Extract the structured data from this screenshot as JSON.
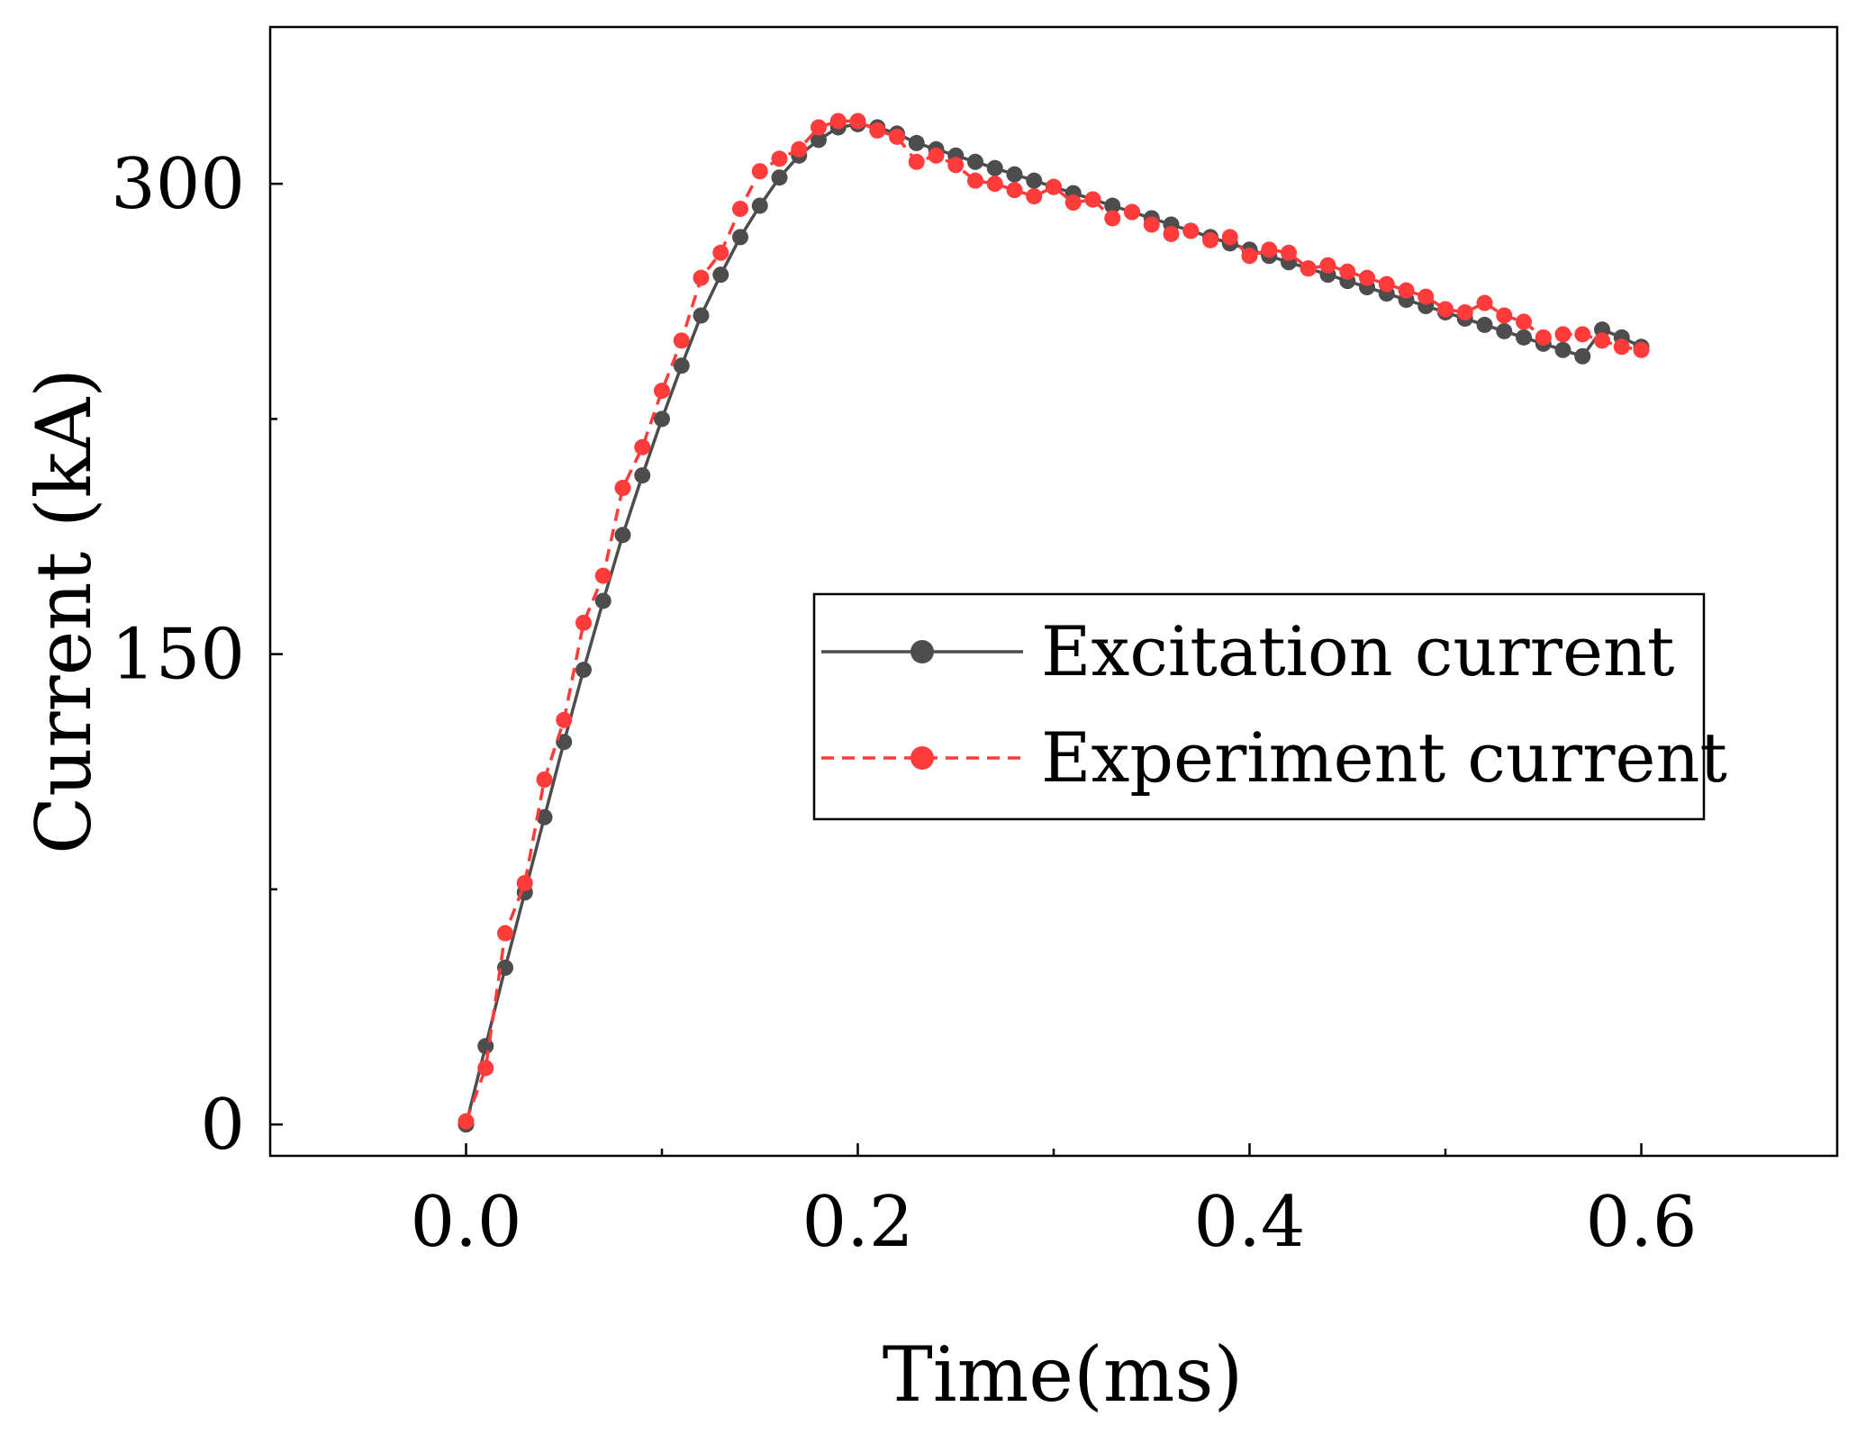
{
  "chart_data": {
    "type": "line",
    "title": "",
    "xlabel": "Time(ms)",
    "ylabel": "Current (kA)",
    "xlim": [
      -0.1,
      0.7
    ],
    "ylim": [
      -10,
      350
    ],
    "xticks": [
      0.0,
      0.2,
      0.4,
      0.6
    ],
    "xtick_labels": [
      "0.0",
      "0.2",
      "0.4",
      "0.6"
    ],
    "xminor": [
      0.1,
      0.3,
      0.5
    ],
    "yticks": [
      0,
      150,
      300
    ],
    "ytick_labels": [
      "0",
      "150",
      "300"
    ],
    "yminor": [
      75,
      225
    ],
    "grid": false,
    "legend_position": "center-right",
    "x": [
      0.0,
      0.01,
      0.02,
      0.03,
      0.04,
      0.05,
      0.06,
      0.07,
      0.08,
      0.09,
      0.1,
      0.11,
      0.12,
      0.13,
      0.14,
      0.15,
      0.16,
      0.17,
      0.18,
      0.19,
      0.2,
      0.21,
      0.22,
      0.23,
      0.24,
      0.25,
      0.26,
      0.27,
      0.28,
      0.29,
      0.3,
      0.31,
      0.32,
      0.33,
      0.34,
      0.35,
      0.36,
      0.37,
      0.38,
      0.39,
      0.4,
      0.41,
      0.42,
      0.43,
      0.44,
      0.45,
      0.46,
      0.47,
      0.48,
      0.49,
      0.5,
      0.51,
      0.52,
      0.53,
      0.54,
      0.55,
      0.56,
      0.57,
      0.58,
      0.59,
      0.6
    ],
    "series": [
      {
        "name": "Excitation current",
        "color": "#4d4d4d",
        "line_style": "solid",
        "marker": "circle",
        "values": [
          0,
          25,
          50,
          74,
          98,
          122,
          145,
          167,
          188,
          207,
          225,
          242,
          258,
          271,
          283,
          293,
          302,
          309,
          314,
          318,
          319,
          318,
          316,
          313,
          311,
          309,
          307,
          305,
          303,
          301,
          299,
          297,
          295,
          293,
          291,
          289,
          287,
          285,
          283,
          281,
          279,
          277,
          275,
          273,
          271,
          269,
          267,
          265,
          263,
          261,
          259,
          257,
          255,
          253,
          251,
          249,
          247,
          245,
          253.5,
          251,
          248
        ]
      },
      {
        "name": "Experiment current",
        "color": "#ff3b3b",
        "line_style": "dashed",
        "marker": "circle",
        "values": [
          1,
          18,
          61,
          77,
          110,
          129,
          160,
          175,
          203,
          216,
          234,
          250,
          270,
          278,
          292,
          304,
          308,
          311,
          318,
          320,
          320,
          317,
          315,
          307,
          309,
          306,
          301,
          300,
          298,
          296,
          299,
          294,
          295,
          289,
          291,
          287,
          284,
          285,
          282,
          283,
          277,
          279,
          278,
          273,
          274,
          272,
          270,
          268,
          266,
          264,
          260,
          259,
          262,
          258,
          256,
          251,
          252,
          252,
          250,
          248,
          247
        ]
      }
    ]
  }
}
